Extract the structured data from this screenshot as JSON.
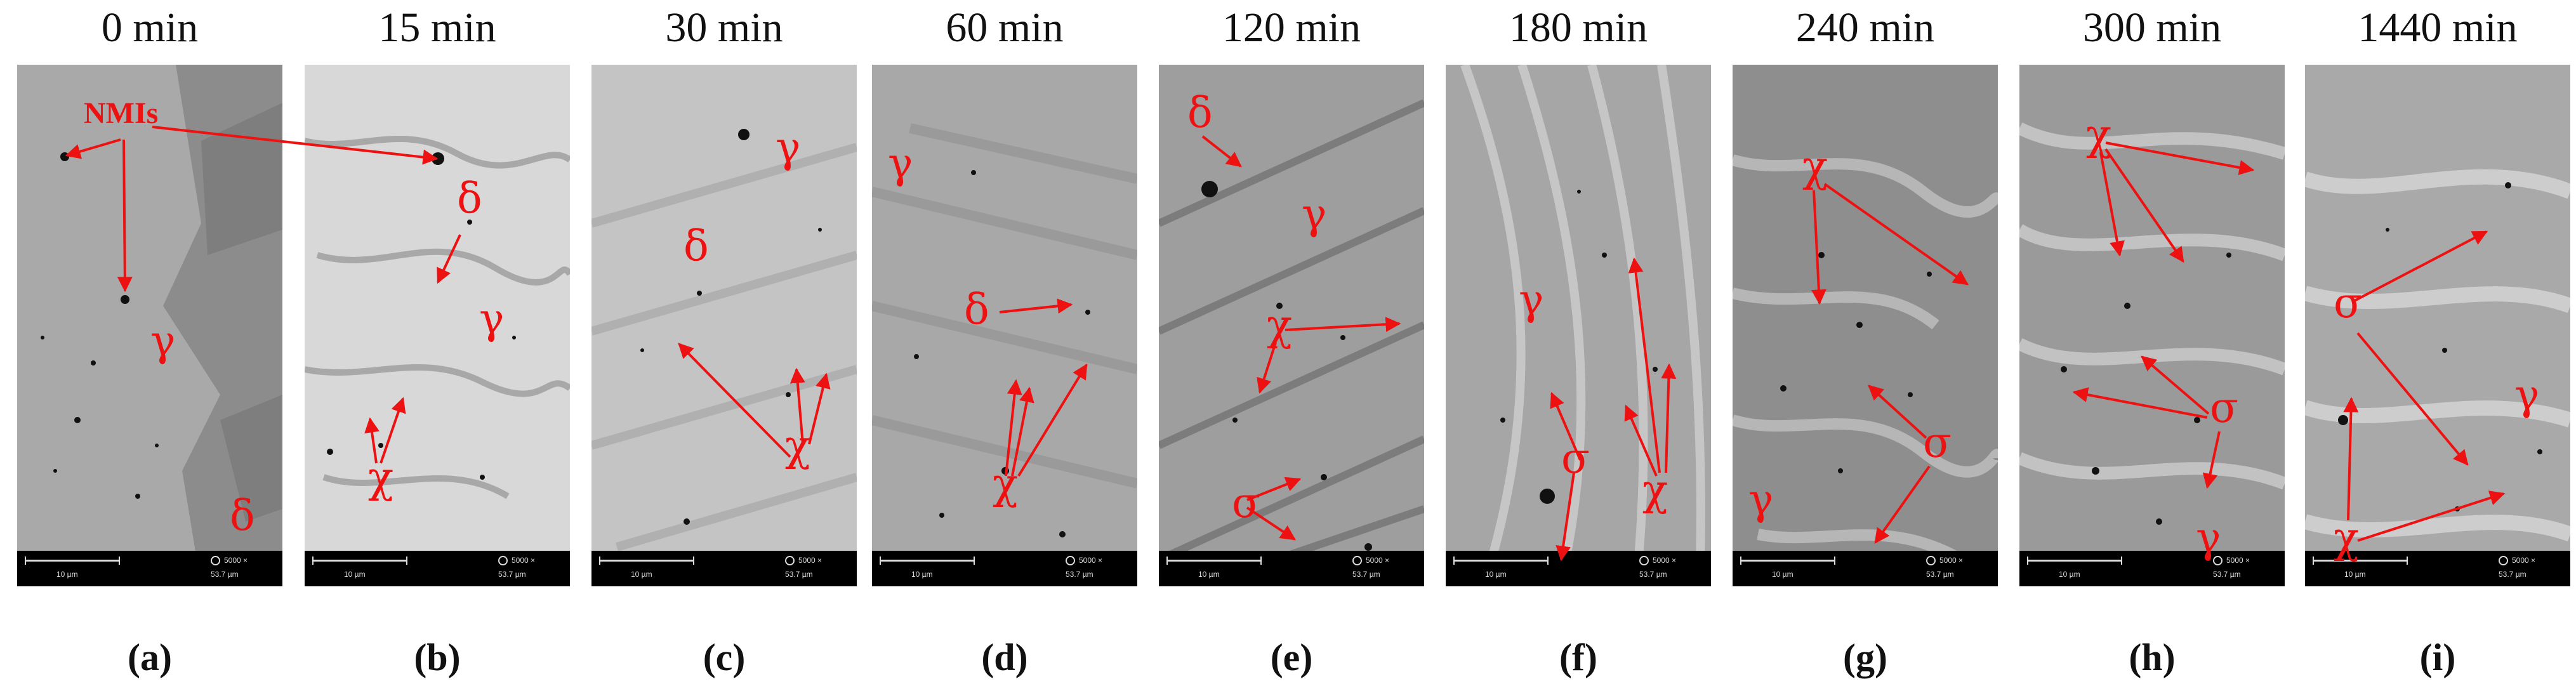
{
  "figure": {
    "panels": [
      {
        "letter": "(a)",
        "time": "0 min"
      },
      {
        "letter": "(b)",
        "time": "15 min"
      },
      {
        "letter": "(c)",
        "time": "30 min"
      },
      {
        "letter": "(d)",
        "time": "60 min"
      },
      {
        "letter": "(e)",
        "time": "120 min"
      },
      {
        "letter": "(f)",
        "time": "180 min"
      },
      {
        "letter": "(g)",
        "time": "240 min"
      },
      {
        "letter": "(h)",
        "time": "300 min"
      },
      {
        "letter": "(i)",
        "time": "1440 min"
      }
    ],
    "scalebar": {
      "length_label": "10 µm",
      "magnification": "5000 ×",
      "field_width": "53.7 µm"
    },
    "phase_labels": {
      "nmi": "NMIs",
      "gamma": "γ",
      "delta": "δ",
      "chi": "χ",
      "sigma": "σ"
    },
    "colors": {
      "annotation": "#ee1111",
      "background_gray_light": "#c8c8c8",
      "background_gray_dark": "#8a8a8a",
      "scalebar_bg": "#000000"
    }
  }
}
